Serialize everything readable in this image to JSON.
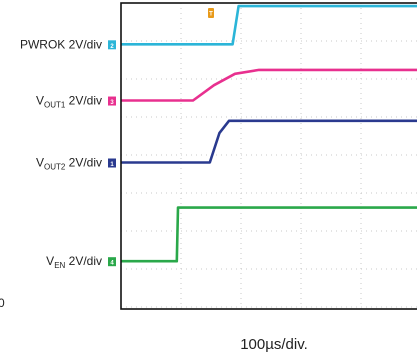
{
  "chart_data": {
    "type": "line",
    "title": "",
    "x_caption": "100µs/div.",
    "x_unit": "div",
    "xlim": [
      0,
      5
    ],
    "ylim": [
      0,
      8
    ],
    "grid": true,
    "trigger_marker": "T",
    "stray_label": "0",
    "series": [
      {
        "key": "pwrok",
        "label_main": "PWROK 2V/div",
        "label_sub": "",
        "label_tail": "",
        "channel": "2",
        "color": "#2bb5d8",
        "points": [
          [
            0,
            6.92
          ],
          [
            1.86,
            6.92
          ],
          [
            1.96,
            7.92
          ],
          [
            5,
            7.92
          ]
        ]
      },
      {
        "key": "vout1",
        "label_main": "V",
        "label_sub": "OUT1",
        "label_tail": " 2V/div",
        "channel": "3",
        "color": "#e8308f",
        "points": [
          [
            0,
            5.45
          ],
          [
            1.2,
            5.45
          ],
          [
            1.55,
            5.85
          ],
          [
            1.9,
            6.15
          ],
          [
            2.3,
            6.25
          ],
          [
            5,
            6.25
          ]
        ]
      },
      {
        "key": "vout2",
        "label_main": "V",
        "label_sub": "OUT2",
        "label_tail": " 2V/div",
        "channel": "1",
        "color": "#2a3a8f",
        "points": [
          [
            0,
            3.83
          ],
          [
            1.48,
            3.83
          ],
          [
            1.64,
            4.6
          ],
          [
            1.8,
            4.92
          ],
          [
            5,
            4.92
          ]
        ]
      },
      {
        "key": "ven",
        "label_main": "V",
        "label_sub": "EN",
        "label_tail": " 2V/div",
        "channel": "4",
        "color": "#2aa84a",
        "points": [
          [
            0,
            1.25
          ],
          [
            0.93,
            1.25
          ],
          [
            0.95,
            2.65
          ],
          [
            5,
            2.65
          ]
        ]
      }
    ]
  }
}
